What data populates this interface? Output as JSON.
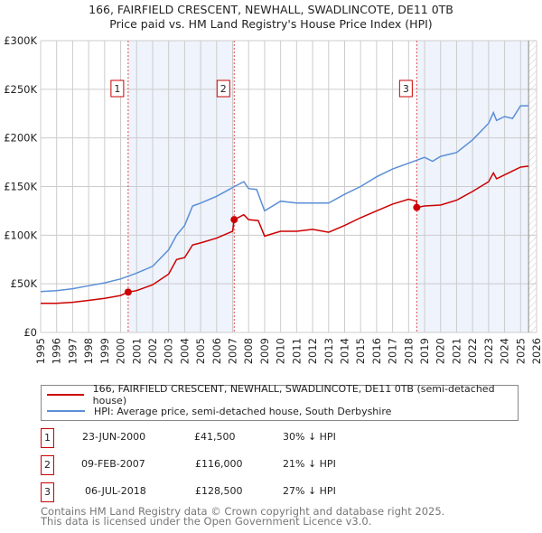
{
  "title_line1": "166, FAIRFIELD CRESCENT, NEWHALL, SWADLINCOTE, DE11 0TB",
  "title_line2": "Price paid vs. HM Land Registry's House Price Index (HPI)",
  "chart_data": {
    "type": "line",
    "ylabel": "",
    "xlabel": "",
    "xlim": [
      1995,
      2026
    ],
    "ylim": [
      0,
      300000
    ],
    "yticks": [
      0,
      50000,
      100000,
      150000,
      200000,
      250000,
      300000
    ],
    "ytick_labels": [
      "£0",
      "£50K",
      "£100K",
      "£150K",
      "£200K",
      "£250K",
      "£300K"
    ],
    "xticks": [
      "1995",
      "1996",
      "1997",
      "1998",
      "1999",
      "2000",
      "2001",
      "2002",
      "2003",
      "2004",
      "2005",
      "2006",
      "2007",
      "2008",
      "2009",
      "2010",
      "2011",
      "2012",
      "2013",
      "2014",
      "2015",
      "2016",
      "2017",
      "2018",
      "2019",
      "2020",
      "2021",
      "2022",
      "2023",
      "2024",
      "2025",
      "2026"
    ],
    "grid": true,
    "shaded_ranges": [
      [
        2000.47,
        2007.1
      ],
      [
        2018.51,
        2025.5
      ]
    ],
    "hatched_from": 2025.5,
    "series": [
      {
        "name": "166, FAIRFIELD CRESCENT, NEWHALL, SWADLINCOTE, DE11 0TB (semi-detached house)",
        "color": "#cc0000",
        "x": [
          1995,
          1996,
          1997,
          1998,
          1999,
          2000,
          2000.47,
          2001,
          2002,
          2003,
          2003.5,
          2004,
          2004.5,
          2005,
          2006,
          2007,
          2007.1,
          2007.7,
          2008,
          2008.6,
          2009,
          2010,
          2011,
          2012,
          2013,
          2014,
          2015,
          2016,
          2017,
          2018,
          2018.5,
          2018.51,
          2019,
          2020,
          2021,
          2022,
          2023,
          2023.3,
          2023.5,
          2024,
          2025,
          2025.5
        ],
        "y": [
          30000,
          30000,
          31000,
          33000,
          35000,
          38000,
          41500,
          43000,
          49000,
          60000,
          75000,
          77000,
          90000,
          92000,
          97000,
          104000,
          116000,
          121000,
          116000,
          115000,
          99000,
          104000,
          104000,
          106000,
          103000,
          110000,
          118000,
          125000,
          132000,
          137000,
          135000,
          128500,
          130000,
          131000,
          136000,
          145000,
          155000,
          164000,
          158000,
          162000,
          170000,
          171000
        ]
      },
      {
        "name": "HPI: Average price, semi-detached house, South Derbyshire",
        "color": "#5b8fd6",
        "x": [
          1995,
          1996,
          1997,
          1998,
          1999,
          2000,
          2001,
          2002,
          2003,
          2003.5,
          2004,
          2004.5,
          2005,
          2006,
          2007,
          2007.7,
          2008,
          2008.5,
          2009,
          2010,
          2011,
          2012,
          2013,
          2014,
          2015,
          2016,
          2017,
          2018,
          2019,
          2019.5,
          2020,
          2021,
          2022,
          2023,
          2023.3,
          2023.5,
          2024,
          2024.5,
          2025,
          2025.5
        ],
        "y": [
          42000,
          43000,
          45000,
          48000,
          51000,
          55000,
          61000,
          68000,
          85000,
          100000,
          110000,
          130000,
          133000,
          140000,
          149000,
          155000,
          148000,
          147000,
          125000,
          135000,
          133000,
          133000,
          133000,
          142000,
          150000,
          160000,
          168000,
          174000,
          180000,
          176000,
          181000,
          185000,
          198000,
          215000,
          226000,
          218000,
          222000,
          220000,
          233000,
          233000
        ]
      }
    ],
    "markers": [
      {
        "label": "1",
        "x": 2000.47,
        "y": 41500
      },
      {
        "label": "2",
        "x": 2007.1,
        "y": 116000
      },
      {
        "label": "3",
        "x": 2018.51,
        "y": 128500
      }
    ]
  },
  "legend": [
    {
      "label": "166, FAIRFIELD CRESCENT, NEWHALL, SWADLINCOTE, DE11 0TB (semi-detached house)",
      "color": "#cc0000"
    },
    {
      "label": "HPI: Average price, semi-detached house, South Derbyshire",
      "color": "#5b8fd6"
    }
  ],
  "transactions": [
    {
      "num": "1",
      "date": "23-JUN-2000",
      "price": "£41,500",
      "hpi": "30% ↓ HPI"
    },
    {
      "num": "2",
      "date": "09-FEB-2007",
      "price": "£116,000",
      "hpi": "21% ↓ HPI"
    },
    {
      "num": "3",
      "date": "06-JUL-2018",
      "price": "£128,500",
      "hpi": "27% ↓ HPI"
    }
  ],
  "footer_line1": "Contains HM Land Registry data © Crown copyright and database right 2025.",
  "footer_line2": "This data is licensed under the Open Government Licence v3.0."
}
